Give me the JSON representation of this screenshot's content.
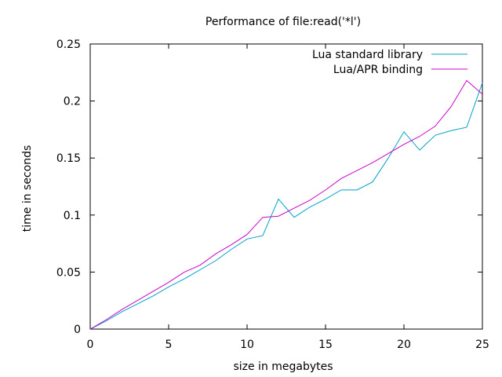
{
  "chart_data": {
    "type": "line",
    "title": "Performance of file:read('*l')",
    "xlabel": "size in megabytes",
    "ylabel": "time in seconds",
    "xlim": [
      0,
      25
    ],
    "ylim": [
      0,
      0.25
    ],
    "xticks": [
      0,
      5,
      10,
      15,
      20,
      25
    ],
    "xtick_labels": [
      "0",
      "5",
      "10",
      "15",
      "20",
      "25"
    ],
    "yticks": [
      0,
      0.05,
      0.1,
      0.15,
      0.2,
      0.25
    ],
    "ytick_labels": [
      "0",
      "0.05",
      "0.1",
      "0.15",
      "0.2",
      "0.25"
    ],
    "grid": false,
    "legend_position": "top-right",
    "x": [
      0,
      1,
      2,
      3,
      4,
      5,
      6,
      7,
      8,
      9,
      10,
      11,
      12,
      13,
      14,
      15,
      16,
      17,
      18,
      19,
      20,
      21,
      22,
      23,
      24,
      25
    ],
    "series": [
      {
        "name": "Lua standard library",
        "color": "#00a0c8",
        "values": [
          0,
          0.007,
          0.015,
          0.022,
          0.029,
          0.037,
          0.044,
          0.052,
          0.06,
          0.07,
          0.079,
          0.082,
          0.114,
          0.098,
          0.107,
          0.114,
          0.122,
          0.122,
          0.129,
          0.15,
          0.173,
          0.157,
          0.17,
          0.174,
          0.177,
          0.216
        ]
      },
      {
        "name": "Lua/APR binding",
        "color": "#cc00cc",
        "values": [
          0,
          0.008,
          0.017,
          0.025,
          0.033,
          0.041,
          0.05,
          0.056,
          0.066,
          0.074,
          0.083,
          0.098,
          0.099,
          0.106,
          0.113,
          0.122,
          0.132,
          0.139,
          0.146,
          0.154,
          0.162,
          0.169,
          0.178,
          0.195,
          0.218,
          0.206
        ]
      }
    ]
  }
}
